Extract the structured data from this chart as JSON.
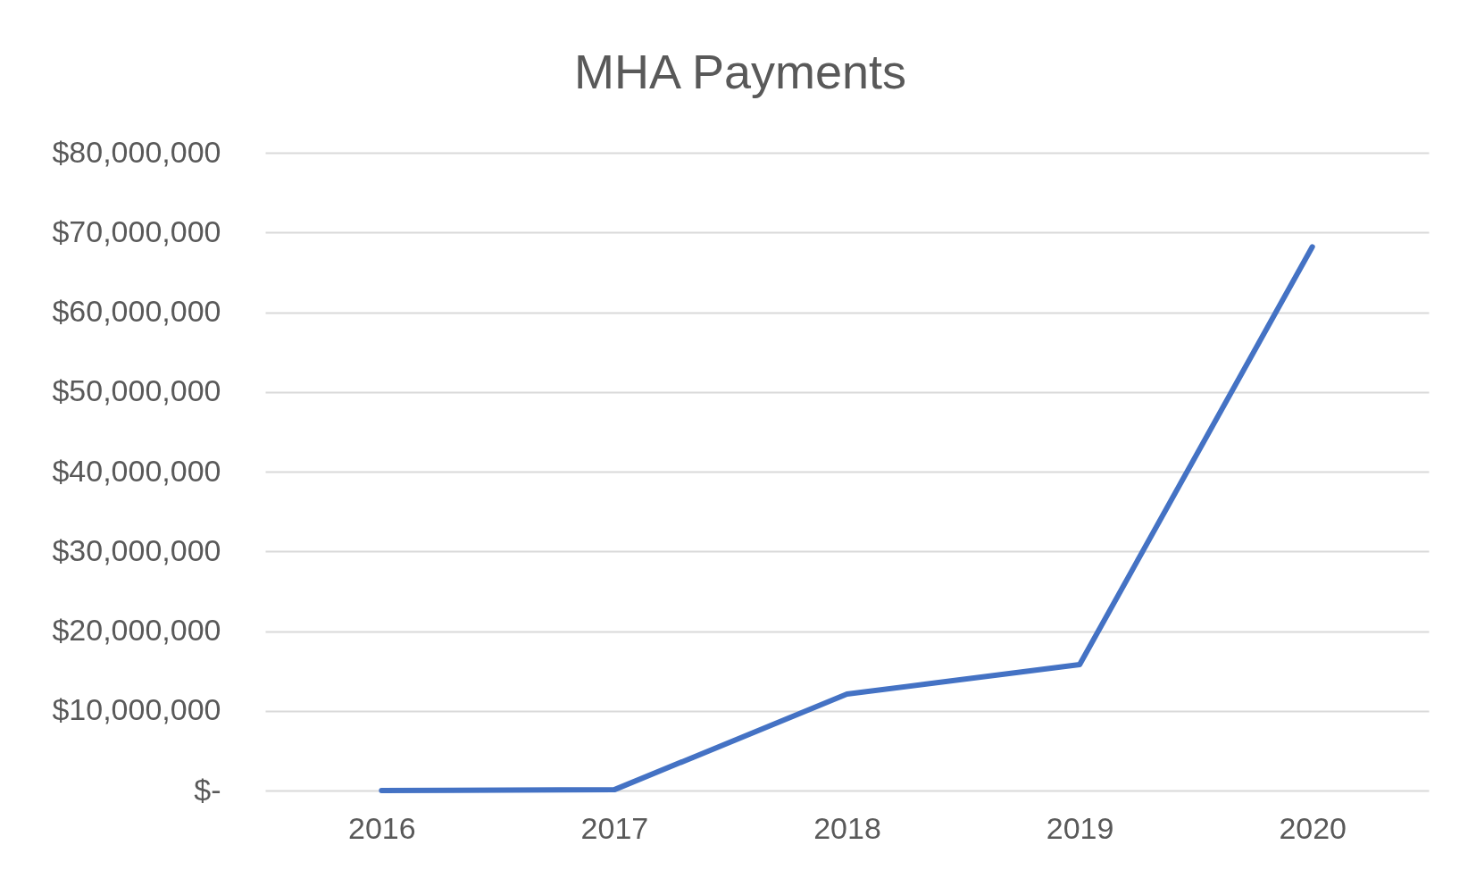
{
  "chart_data": {
    "type": "line",
    "title": "MHA Payments",
    "categories": [
      "2016",
      "2017",
      "2018",
      "2019",
      "2020"
    ],
    "series": [
      {
        "color": "#4472c4",
        "values": [
          0,
          100000,
          12100000,
          15800000,
          68200000
        ]
      }
    ],
    "ylim": [
      0,
      80000000
    ],
    "yticks": [
      {
        "value": 0,
        "label": "$-"
      },
      {
        "value": 10000000,
        "label": "$10,000,000"
      },
      {
        "value": 20000000,
        "label": "$20,000,000"
      },
      {
        "value": 30000000,
        "label": "$30,000,000"
      },
      {
        "value": 40000000,
        "label": "$40,000,000"
      },
      {
        "value": 50000000,
        "label": "$50,000,000"
      },
      {
        "value": 60000000,
        "label": "$60,000,000"
      },
      {
        "value": 70000000,
        "label": "$70,000,000"
      },
      {
        "value": 80000000,
        "label": "$80,000,000"
      }
    ],
    "grid": "y"
  }
}
